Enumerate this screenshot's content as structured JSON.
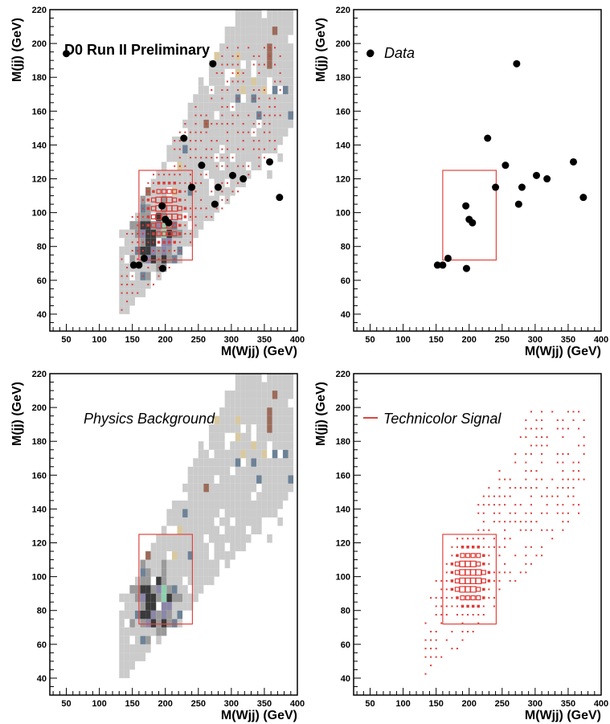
{
  "chart_data": [
    {
      "type": "heatmap",
      "title": "D0 Run II Preliminary",
      "xlabel": "M(Wjj) (GeV)",
      "ylabel": "M(jj) (GeV)",
      "xlim": [
        25,
        400
      ],
      "ylim": [
        30,
        220
      ],
      "xticks": [
        50,
        100,
        150,
        200,
        250,
        300,
        350,
        400
      ],
      "yticks": [
        40,
        60,
        80,
        100,
        120,
        140,
        160,
        180,
        200,
        220
      ],
      "layers": [
        "background",
        "signal",
        "data",
        "window"
      ],
      "legend": []
    },
    {
      "type": "scatter",
      "title": "",
      "xlabel": "M(Wjj) (GeV)",
      "ylabel": "M(jj) (GeV)",
      "xlim": [
        25,
        400
      ],
      "ylim": [
        30,
        220
      ],
      "xticks": [
        50,
        100,
        150,
        200,
        250,
        300,
        350,
        400
      ],
      "yticks": [
        40,
        60,
        80,
        100,
        120,
        140,
        160,
        180,
        200,
        220
      ],
      "layers": [
        "data",
        "window"
      ],
      "legend": [
        {
          "label": "Data",
          "marker": "dot"
        }
      ]
    },
    {
      "type": "heatmap",
      "title": "",
      "xlabel": "M(Wjj) (GeV)",
      "ylabel": "M(jj) (GeV)",
      "xlim": [
        25,
        400
      ],
      "ylim": [
        30,
        220
      ],
      "xticks": [
        50,
        100,
        150,
        200,
        250,
        300,
        350,
        400
      ],
      "yticks": [
        40,
        60,
        80,
        100,
        120,
        140,
        160,
        180,
        200,
        220
      ],
      "layers": [
        "background",
        "window"
      ],
      "legend": [
        {
          "label": "Physics Background",
          "marker": "none"
        }
      ]
    },
    {
      "type": "heatmap",
      "title": "",
      "xlabel": "M(Wjj) (GeV)",
      "ylabel": "M(jj) (GeV)",
      "xlim": [
        25,
        400
      ],
      "ylim": [
        30,
        220
      ],
      "xticks": [
        50,
        100,
        150,
        200,
        250,
        300,
        350,
        400
      ],
      "yticks": [
        40,
        60,
        80,
        100,
        120,
        140,
        160,
        180,
        200,
        220
      ],
      "layers": [
        "signal",
        "window"
      ],
      "legend": [
        {
          "label": "Technicolor Signal",
          "marker": "line"
        }
      ]
    }
  ],
  "shared": {
    "data_points": [
      [
        50,
        194
      ],
      [
        152,
        69
      ],
      [
        160,
        69
      ],
      [
        168,
        73
      ],
      [
        196,
        67
      ],
      [
        195,
        104
      ],
      [
        200,
        96
      ],
      [
        205,
        94
      ],
      [
        228,
        144
      ],
      [
        240,
        115
      ],
      [
        255,
        128
      ],
      [
        272,
        188
      ],
      [
        275,
        105
      ],
      [
        280,
        115
      ],
      [
        302,
        122
      ],
      [
        318,
        120
      ],
      [
        358,
        130
      ],
      [
        373,
        109
      ]
    ],
    "mass_window": {
      "x": [
        160,
        241
      ],
      "y": [
        72,
        125
      ]
    },
    "background": {
      "bin_width_x": 8,
      "bin_width_y": 5,
      "profile": {
        "center_slope": 0.6,
        "center_offset": -20,
        "half_width_base": 22,
        "half_width_slope": 0.17
      },
      "colors": {
        "light": "#cbcbcb",
        "mid": "#9a9a9a",
        "dark": "#3a3a3a",
        "blue": "#6d8296",
        "brown": "#9b6b5a",
        "green": "#8fd0b0",
        "tan": "#d9c9a0",
        "purple": "#8c86a8"
      }
    },
    "signal": {
      "bin_width_x": 8,
      "bin_width_y": 5,
      "peak": [
        200,
        100
      ],
      "color": "#dd3a35"
    },
    "colors": {
      "window": "#e0453f",
      "data_marker": "#000000",
      "axis": "#000000"
    }
  }
}
